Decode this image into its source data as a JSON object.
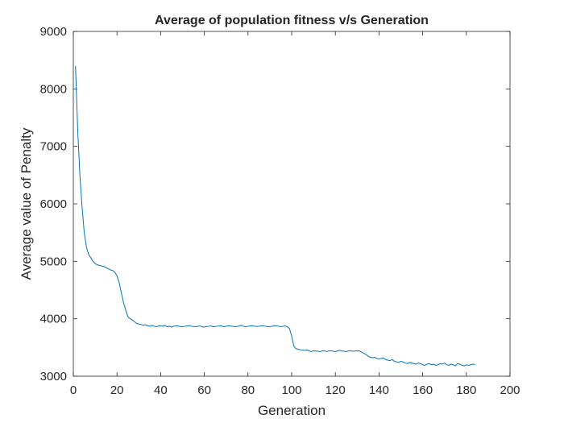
{
  "chart_data": {
    "type": "line",
    "title": "Average of population fitness v/s Generation",
    "xlabel": "Generation",
    "ylabel": "Average value of Penalty",
    "xlim": [
      0,
      200
    ],
    "ylim": [
      3000,
      9000
    ],
    "xticks": [
      0,
      20,
      40,
      60,
      80,
      100,
      120,
      140,
      160,
      180,
      200
    ],
    "yticks": [
      3000,
      4000,
      5000,
      6000,
      7000,
      8000,
      9000
    ],
    "grid": false,
    "legend": "none",
    "line_color": "#0072bd",
    "series": [
      {
        "x": [
          1,
          2,
          3,
          4,
          5,
          6,
          7,
          8,
          9,
          10,
          11,
          12,
          13,
          14,
          15,
          16,
          17,
          18,
          19,
          20,
          21,
          22,
          23,
          24,
          25,
          26,
          27,
          28,
          29,
          30,
          31,
          32,
          33,
          34,
          35,
          36,
          37,
          38,
          39,
          40,
          41,
          42,
          43,
          44,
          45,
          46,
          47,
          48,
          49,
          50,
          51,
          52,
          53,
          54,
          55,
          56,
          57,
          58,
          59,
          60,
          61,
          62,
          63,
          64,
          65,
          66,
          67,
          68,
          69,
          70,
          71,
          72,
          73,
          74,
          75,
          76,
          77,
          78,
          79,
          80,
          81,
          82,
          83,
          84,
          85,
          86,
          87,
          88,
          89,
          90,
          91,
          92,
          93,
          94,
          95,
          96,
          97,
          98,
          99,
          100,
          101,
          102,
          103,
          104,
          105,
          106,
          107,
          108,
          109,
          110,
          111,
          112,
          113,
          114,
          115,
          116,
          117,
          118,
          119,
          120,
          121,
          122,
          123,
          124,
          125,
          126,
          127,
          128,
          129,
          130,
          131,
          132,
          133,
          134,
          135,
          136,
          137,
          138,
          139,
          140,
          141,
          142,
          143,
          144,
          145,
          146,
          147,
          148,
          149,
          150,
          151,
          152,
          153,
          154,
          155,
          156,
          157,
          158,
          159,
          160,
          161,
          162,
          163,
          164,
          165,
          166,
          167,
          168,
          169,
          170,
          171,
          172,
          173,
          174,
          175,
          176,
          177,
          178,
          179,
          180,
          181,
          182,
          183,
          184
        ],
        "values": [
          8400,
          7300,
          6500,
          5950,
          5500,
          5250,
          5120,
          5060,
          5000,
          4960,
          4940,
          4930,
          4920,
          4910,
          4890,
          4870,
          4850,
          4840,
          4810,
          4750,
          4630,
          4450,
          4280,
          4150,
          4040,
          4000,
          3980,
          3950,
          3920,
          3910,
          3900,
          3890,
          3895,
          3880,
          3870,
          3885,
          3870,
          3860,
          3875,
          3880,
          3870,
          3885,
          3860,
          3870,
          3855,
          3870,
          3880,
          3875,
          3865,
          3860,
          3870,
          3875,
          3880,
          3870,
          3865,
          3860,
          3870,
          3875,
          3860,
          3855,
          3865,
          3870,
          3875,
          3860,
          3865,
          3870,
          3880,
          3875,
          3860,
          3870,
          3880,
          3875,
          3870,
          3860,
          3865,
          3875,
          3885,
          3870,
          3860,
          3870,
          3875,
          3880,
          3870,
          3865,
          3870,
          3875,
          3880,
          3870,
          3865,
          3860,
          3870,
          3875,
          3880,
          3870,
          3860,
          3870,
          3875,
          3860,
          3830,
          3700,
          3520,
          3480,
          3470,
          3460,
          3455,
          3450,
          3460,
          3440,
          3430,
          3445,
          3440,
          3435,
          3430,
          3440,
          3445,
          3430,
          3440,
          3445,
          3435,
          3430,
          3440,
          3450,
          3440,
          3435,
          3430,
          3440,
          3445,
          3435,
          3440,
          3445,
          3440,
          3420,
          3400,
          3380,
          3350,
          3330,
          3320,
          3330,
          3310,
          3300,
          3310,
          3320,
          3290,
          3280,
          3270,
          3290,
          3260,
          3250,
          3240,
          3260,
          3250,
          3230,
          3220,
          3240,
          3230,
          3220,
          3210,
          3230,
          3220,
          3200,
          3190,
          3210,
          3220,
          3200,
          3210,
          3190,
          3200,
          3220,
          3210,
          3230,
          3200,
          3190,
          3210,
          3200,
          3180,
          3220,
          3210,
          3190,
          3180,
          3200,
          3190,
          3200,
          3210,
          3205
        ]
      }
    ]
  }
}
